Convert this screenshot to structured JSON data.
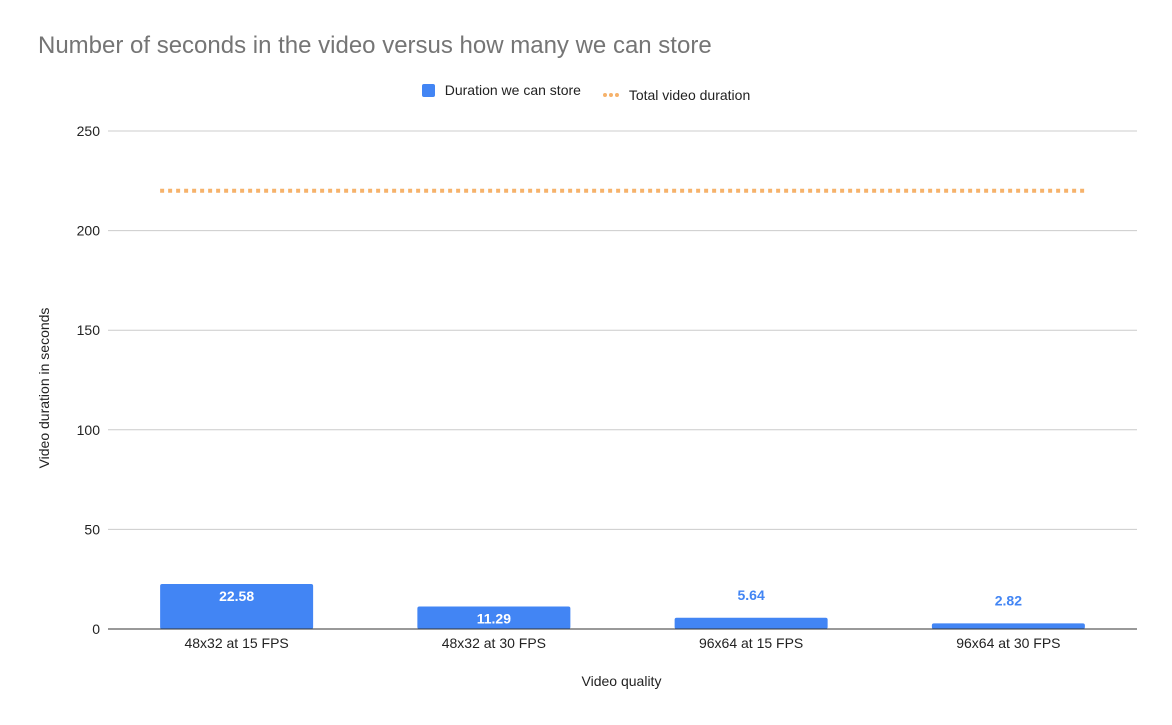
{
  "chart_data": {
    "type": "bar",
    "title": "Number of seconds in the video versus how many we can store",
    "xlabel": "Video quality",
    "ylabel": "Video duration in seconds",
    "categories": [
      "48x32 at 15 FPS",
      "48x32 at 30 FPS",
      "96x64 at 15 FPS",
      "96x64 at 30 FPS"
    ],
    "series": [
      {
        "name": "Duration we can store",
        "type": "bar",
        "values": [
          22.58,
          11.29,
          5.64,
          2.82
        ],
        "data_labels": [
          "22.58",
          "11.29",
          "5.64",
          "2.82"
        ],
        "color": "#4285f4"
      },
      {
        "name": "Total video duration",
        "type": "line",
        "style": "dotted",
        "values": [
          220,
          220,
          220,
          220
        ],
        "color": "#f6b26b"
      }
    ],
    "ylim": [
      0,
      250
    ],
    "yticks": [
      0,
      50,
      100,
      150,
      200,
      250
    ],
    "grid": true,
    "legend_position": "top"
  }
}
